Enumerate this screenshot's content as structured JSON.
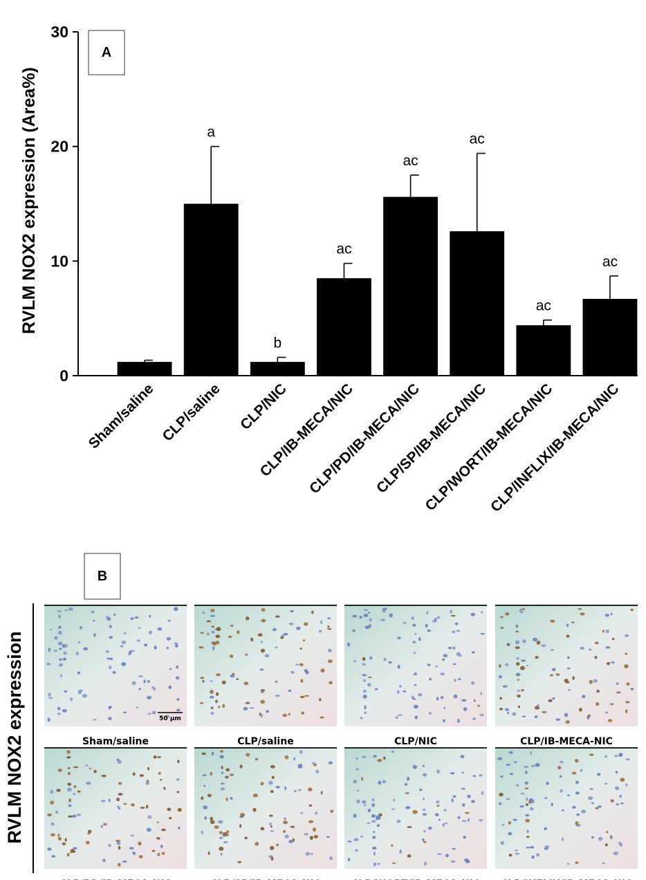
{
  "chart_data": {
    "type": "bar",
    "panel_label": "A",
    "ylabel": "RVLM NOX2 expression (Area%)",
    "ylim": [
      0,
      30
    ],
    "yticks": [
      0,
      10,
      20,
      30
    ],
    "categories": [
      "Sham/saline",
      "CLP/saline",
      "CLP/NIC",
      "CLP/IB-MECA/NIC",
      "CLP/PD/IB-MECA/NIC",
      "CLP/SP/IB-MECA/NIC",
      "CLP/WORT/IB-MECA/NIC",
      "CLP/INFLIX/IB-MECA/NIC"
    ],
    "values": [
      1.2,
      15.0,
      1.2,
      8.5,
      15.6,
      12.6,
      4.4,
      6.7
    ],
    "errors": [
      0.15,
      5.0,
      0.4,
      1.3,
      1.9,
      6.8,
      0.45,
      2.0
    ],
    "significance": [
      "",
      "a",
      "b",
      "ac",
      "ac",
      "ac",
      "ac",
      "ac"
    ],
    "bar_color": "#000000",
    "grid": false
  },
  "panel_b": {
    "panel_label": "B",
    "side_label": "RVLM NOX2 expression",
    "scale_bar": "50 μm",
    "images": [
      {
        "caption": "Sham/saline",
        "brown_level": 0.0
      },
      {
        "caption": "CLP/saline",
        "brown_level": 0.9
      },
      {
        "caption": "CLP/NIC",
        "brown_level": 0.05
      },
      {
        "caption": "CLP/IB-MECA-NIC",
        "brown_level": 0.7
      },
      {
        "caption": "CLP/PD/IB-MECA-NIC",
        "brown_level": 0.85
      },
      {
        "caption": "CLP/SP/IB-MECA-NIC",
        "brown_level": 0.75
      },
      {
        "caption": "CLP/WORT/IB-MECA-NIC",
        "brown_level": 0.2
      },
      {
        "caption": "CLP/INFLIX/IB-MECA-NIC",
        "brown_level": 0.35
      }
    ]
  }
}
